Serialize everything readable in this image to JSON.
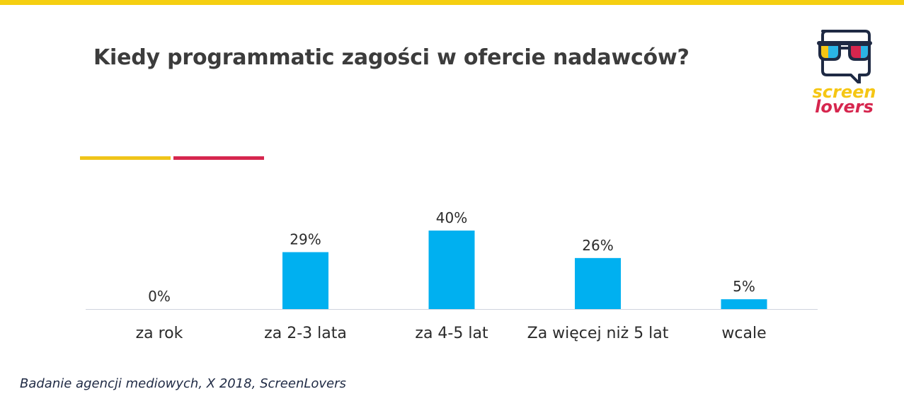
{
  "header": {
    "title": "Kiedy programmatic zagości w ofercie nadawców?"
  },
  "logo": {
    "line1": "screen",
    "line2": "lovers"
  },
  "footer": {
    "source": "Badanie agencji mediowych, X 2018, ScreenLovers"
  },
  "colors": {
    "bar": "#00b0f0",
    "accent_yellow": "#f0c419",
    "accent_red": "#d6264e",
    "top_bar": "#f5cf11",
    "title": "#3c3c3c"
  },
  "chart_data": {
    "type": "bar",
    "title": "Kiedy programmatic zagości w ofercie nadawców?",
    "categories": [
      "za rok",
      "za 2-3 lata",
      "za 4-5 lat",
      "Za więcej niż 5 lat",
      "wcale"
    ],
    "values": [
      0,
      29,
      40,
      26,
      5
    ],
    "value_labels": [
      "0%",
      "29%",
      "40%",
      "26%",
      "5%"
    ],
    "unit": "%",
    "xlabel": "",
    "ylabel": "",
    "ylim": [
      0,
      40
    ],
    "grid": false,
    "legend": "none"
  }
}
